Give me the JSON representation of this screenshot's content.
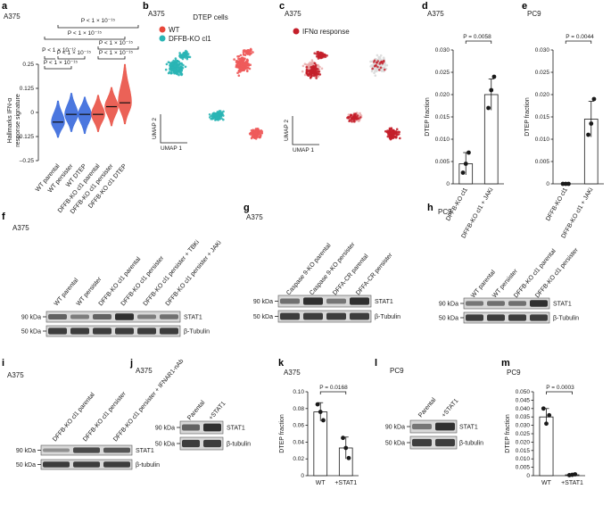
{
  "colors": {
    "wt_violin": "#2b5fd9",
    "ko_violin": "#e8473a",
    "wt_cluster": "#2ab5b5",
    "ko_cluster": "#ee5b5b",
    "ifn": "#c41f2a",
    "bar_fill": "#ffffff",
    "point": "#1a1a1a",
    "blot_band": "#1f1f1f",
    "blot_bg": "#d8d8d8"
  },
  "panel_a": {
    "letter": "a",
    "cell_line": "A375",
    "ylabel_line1": "Hallmarks IFN-α",
    "ylabel_line2": "response signature",
    "pvalues": [
      "P < 1 × 10⁻¹⁵",
      "P < 1 × 10⁻¹⁵",
      "P < 1 × 10⁻¹⁵",
      "P < 1 × 10⁻¹⁵",
      "P < 1 × 10⁻¹²",
      "P < 1 × 10⁻¹⁵",
      "P < 1 × 10⁻¹⁵"
    ]
  },
  "panel_b": {
    "letter": "b",
    "cell_line": "A375",
    "title": "DTEP cells",
    "legend": [
      "WT",
      "DFFB-KO cl1"
    ],
    "axis_y": "UMAP 2",
    "axis_x": "UMAP 1"
  },
  "panel_c": {
    "letter": "c",
    "cell_line": "A375",
    "legend": [
      "IFNα response"
    ],
    "axis_y": "UMAP 2",
    "axis_x": "UMAP 1"
  },
  "panel_d": {
    "letter": "d",
    "cell_line": "A375",
    "pvalue": "P = 0.0058"
  },
  "panel_e": {
    "letter": "e",
    "cell_line": "PC9",
    "pvalue": "P = 0.0044"
  },
  "panel_f": {
    "letter": "f",
    "cell_line": "A375",
    "lanes": [
      "WT parental",
      "WT persister",
      "DFFB-KO cl1 parental",
      "DFFB-KO cl1 persister",
      "DFFB-KO cl1 persister + TBKi",
      "DFFB-KO cl1 persister + JAKi"
    ],
    "rows": [
      {
        "kda": "90 kDa",
        "protein": "STAT1"
      },
      {
        "kda": "50 kDa",
        "protein": "β-Tubulin"
      }
    ]
  },
  "panel_g": {
    "letter": "g",
    "cell_line": "A375",
    "lanes": [
      "Caspase 9-KO parental",
      "Caspase 9-KO persister",
      "DFFA-CR parental",
      "DFFA-CR persister"
    ],
    "rows": [
      {
        "kda": "90 kDa",
        "protein": "STAT1"
      },
      {
        "kda": "50 kDa",
        "protein": "β-Tubulin"
      }
    ]
  },
  "panel_h": {
    "letter": "h",
    "cell_line": "PC9",
    "lanes": [
      "WT parental",
      "WT persister",
      "DFFB-KO cl1 parental",
      "DFFB-KO cl1 persister"
    ],
    "rows": [
      {
        "kda": "90 kDa",
        "protein": "STAT1"
      },
      {
        "kda": "50 kDa",
        "protein": "β-Tubulin"
      }
    ]
  },
  "panel_i": {
    "letter": "i",
    "cell_line": "A375",
    "lanes": [
      "DFFB-KO cl1 parental",
      "DFFB-KO cl1 persister",
      "DFFB-KO cl1 persister + IFNAR1-nAb"
    ],
    "rows": [
      {
        "kda": "90 kDa",
        "protein": "STAT1"
      },
      {
        "kda": "50 kDa",
        "protein": "β-tubulin"
      }
    ]
  },
  "panel_j": {
    "letter": "j",
    "cell_line": "A375",
    "lanes": [
      "Parental",
      "+STAT1"
    ],
    "rows": [
      {
        "kda": "90 kDa",
        "protein": "STAT1"
      },
      {
        "kda": "50 kDa",
        "protein": "β-tubulin"
      }
    ]
  },
  "panel_k": {
    "letter": "k",
    "cell_line": "A375",
    "pvalue": "P = 0.0168"
  },
  "panel_l": {
    "letter": "l",
    "cell_line": "PC9",
    "lanes": [
      "Parental",
      "+STAT1"
    ],
    "rows": [
      {
        "kda": "90 kDa",
        "protein": "STAT1"
      },
      {
        "kda": "50 kDa",
        "protein": "β-tubulin"
      }
    ]
  },
  "panel_m": {
    "letter": "m",
    "cell_line": "PC9",
    "pvalue": "P = 0.0003"
  },
  "chart_data": [
    {
      "id": "a",
      "type": "violin",
      "categories": [
        "WT parental",
        "WT persister",
        "WT DTEP",
        "DFFB-KO cl1 parental",
        "DFFB-KO cl1 persister",
        "DFFB-KO cl1 DTEP"
      ],
      "medians": [
        -0.05,
        -0.01,
        -0.01,
        -0.01,
        0.03,
        0.05
      ],
      "spread_low": [
        -0.13,
        -0.1,
        -0.11,
        -0.1,
        -0.07,
        -0.06
      ],
      "spread_high": [
        0.06,
        0.1,
        0.08,
        0.09,
        0.13,
        0.25
      ],
      "ylabel": "Hallmarks IFN-α response signature",
      "yticks": [
        0.25,
        0.125,
        0,
        -0.125,
        -0.25
      ],
      "ytick_labels": [
        "0.25",
        "0.125",
        "0",
        "–0.125",
        "–0.25"
      ],
      "ylim": [
        -0.25,
        0.25
      ]
    },
    {
      "id": "d",
      "type": "bar",
      "categories": [
        "DFFB-KO cl1",
        "DFFB-KO cl1 + JAKi"
      ],
      "values": [
        0.0045,
        0.02
      ],
      "errors": [
        0.0025,
        0.0035
      ],
      "points": [
        [
          0.0025,
          0.0045,
          0.007
        ],
        [
          0.017,
          0.021,
          0.024
        ]
      ],
      "ylabel": "DTEP fraction",
      "yticks": [
        0,
        0.005,
        0.01,
        0.015,
        0.02,
        0.025,
        0.03
      ],
      "ytick_labels": [
        "0",
        "0.005",
        "0.010",
        "0.015",
        "0.020",
        "0.025",
        "0.030"
      ],
      "ylim": [
        0,
        0.03
      ]
    },
    {
      "id": "e",
      "type": "bar",
      "categories": [
        "DFFB-KO cl1",
        "DFFB-KO cl1 + JAKi"
      ],
      "values": [
        0.0,
        0.0145
      ],
      "errors": [
        0.0,
        0.004
      ],
      "points": [
        [
          0.0,
          0.0,
          0.0
        ],
        [
          0.011,
          0.0135,
          0.019
        ]
      ],
      "ylabel": "DTEP fraction",
      "yticks": [
        0,
        0.005,
        0.01,
        0.015,
        0.02,
        0.025,
        0.03
      ],
      "ytick_labels": [
        "0",
        "0.005",
        "0.010",
        "0.015",
        "0.020",
        "0.025",
        "0.030"
      ],
      "ylim": [
        0,
        0.03
      ]
    },
    {
      "id": "k",
      "type": "bar",
      "categories": [
        "WT",
        "+STAT1"
      ],
      "values": [
        0.076,
        0.033
      ],
      "errors": [
        0.011,
        0.013
      ],
      "points": [
        [
          0.085,
          0.076,
          0.066
        ],
        [
          0.045,
          0.033,
          0.021
        ]
      ],
      "ylabel": "DTEP fraction",
      "yticks": [
        0,
        0.02,
        0.04,
        0.06,
        0.08,
        0.1
      ],
      "ytick_labels": [
        "0",
        "0.02",
        "0.04",
        "0.06",
        "0.08",
        "0.10"
      ],
      "ylim": [
        0,
        0.1
      ]
    },
    {
      "id": "m",
      "type": "bar",
      "categories": [
        "WT",
        "+STAT1"
      ],
      "values": [
        0.035,
        0.0005
      ],
      "errors": [
        0.005,
        0.0003
      ],
      "points": [
        [
          0.04,
          0.031,
          0.036
        ],
        [
          0.0003,
          0.0005,
          0.0008
        ]
      ],
      "ylabel": "DTEP fraction",
      "yticks": [
        0,
        0.005,
        0.01,
        0.015,
        0.02,
        0.025,
        0.03,
        0.035,
        0.04,
        0.045,
        0.05
      ],
      "ytick_labels": [
        "0",
        "0.005",
        "0.010",
        "0.015",
        "0.020",
        "0.025",
        "0.030",
        "0.035",
        "0.040",
        "0.045",
        "0.050"
      ],
      "ylim": [
        0,
        0.05
      ]
    }
  ]
}
